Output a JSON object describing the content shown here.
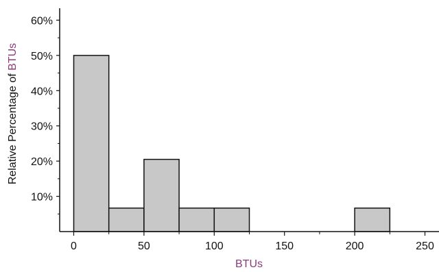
{
  "chart_data": {
    "type": "bar",
    "histogram": true,
    "bins": [
      {
        "start": 0,
        "end": 25,
        "value": 50
      },
      {
        "start": 25,
        "end": 50,
        "value": 6.67
      },
      {
        "start": 50,
        "end": 75,
        "value": 20.5
      },
      {
        "start": 75,
        "end": 100,
        "value": 6.67
      },
      {
        "start": 100,
        "end": 125,
        "value": 6.67
      },
      {
        "start": 125,
        "end": 150,
        "value": 0
      },
      {
        "start": 150,
        "end": 175,
        "value": 0
      },
      {
        "start": 175,
        "end": 200,
        "value": 0
      },
      {
        "start": 200,
        "end": 225,
        "value": 6.67
      }
    ],
    "xlabel": "BTUs",
    "ylabel_prefix": "Relative Percentage of ",
    "ylabel_highlight": "BTUs",
    "xlim": [
      -10,
      260
    ],
    "ylim": [
      0,
      63
    ],
    "xticks": [
      0,
      50,
      100,
      150,
      200,
      250
    ],
    "xtick_labels": [
      "0",
      "50",
      "100",
      "150",
      "200",
      "250"
    ],
    "yticks": [
      10,
      20,
      30,
      40,
      50,
      60
    ],
    "ytick_labels": [
      "10%",
      "20%",
      "30%",
      "40%",
      "50%",
      "60%"
    ],
    "grid": false,
    "colors": {
      "bar_fill": "#c8c8c8",
      "bar_stroke": "#111111",
      "axis": "#111111",
      "label_accent": "#8b3a7a",
      "text": "#111111"
    }
  }
}
